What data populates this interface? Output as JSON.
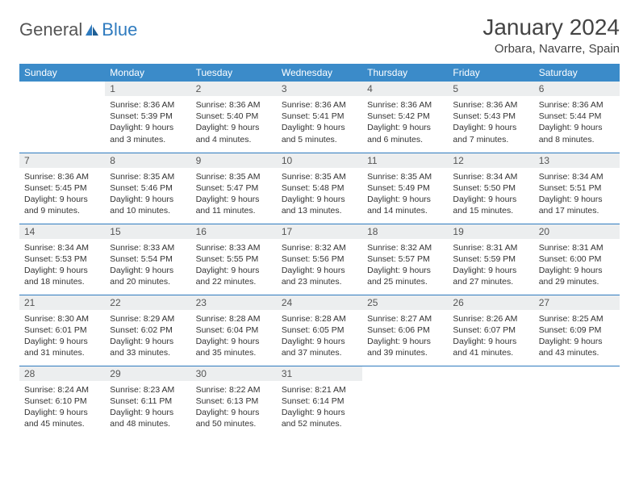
{
  "brand": {
    "general": "General",
    "blue": "Blue"
  },
  "title": "January 2024",
  "location": "Orbara, Navarre, Spain",
  "colors": {
    "header_bg": "#3b8bc9",
    "header_text": "#ffffff",
    "daynum_bg": "#eceeef",
    "week_border": "#2f7bbf",
    "brand_blue": "#2f7bbf"
  },
  "dow": [
    "Sunday",
    "Monday",
    "Tuesday",
    "Wednesday",
    "Thursday",
    "Friday",
    "Saturday"
  ],
  "weeks": [
    [
      {
        "n": "",
        "sr": "",
        "ss": "",
        "dl": ""
      },
      {
        "n": "1",
        "sr": "Sunrise: 8:36 AM",
        "ss": "Sunset: 5:39 PM",
        "dl": "Daylight: 9 hours and 3 minutes."
      },
      {
        "n": "2",
        "sr": "Sunrise: 8:36 AM",
        "ss": "Sunset: 5:40 PM",
        "dl": "Daylight: 9 hours and 4 minutes."
      },
      {
        "n": "3",
        "sr": "Sunrise: 8:36 AM",
        "ss": "Sunset: 5:41 PM",
        "dl": "Daylight: 9 hours and 5 minutes."
      },
      {
        "n": "4",
        "sr": "Sunrise: 8:36 AM",
        "ss": "Sunset: 5:42 PM",
        "dl": "Daylight: 9 hours and 6 minutes."
      },
      {
        "n": "5",
        "sr": "Sunrise: 8:36 AM",
        "ss": "Sunset: 5:43 PM",
        "dl": "Daylight: 9 hours and 7 minutes."
      },
      {
        "n": "6",
        "sr": "Sunrise: 8:36 AM",
        "ss": "Sunset: 5:44 PM",
        "dl": "Daylight: 9 hours and 8 minutes."
      }
    ],
    [
      {
        "n": "7",
        "sr": "Sunrise: 8:36 AM",
        "ss": "Sunset: 5:45 PM",
        "dl": "Daylight: 9 hours and 9 minutes."
      },
      {
        "n": "8",
        "sr": "Sunrise: 8:35 AM",
        "ss": "Sunset: 5:46 PM",
        "dl": "Daylight: 9 hours and 10 minutes."
      },
      {
        "n": "9",
        "sr": "Sunrise: 8:35 AM",
        "ss": "Sunset: 5:47 PM",
        "dl": "Daylight: 9 hours and 11 minutes."
      },
      {
        "n": "10",
        "sr": "Sunrise: 8:35 AM",
        "ss": "Sunset: 5:48 PM",
        "dl": "Daylight: 9 hours and 13 minutes."
      },
      {
        "n": "11",
        "sr": "Sunrise: 8:35 AM",
        "ss": "Sunset: 5:49 PM",
        "dl": "Daylight: 9 hours and 14 minutes."
      },
      {
        "n": "12",
        "sr": "Sunrise: 8:34 AM",
        "ss": "Sunset: 5:50 PM",
        "dl": "Daylight: 9 hours and 15 minutes."
      },
      {
        "n": "13",
        "sr": "Sunrise: 8:34 AM",
        "ss": "Sunset: 5:51 PM",
        "dl": "Daylight: 9 hours and 17 minutes."
      }
    ],
    [
      {
        "n": "14",
        "sr": "Sunrise: 8:34 AM",
        "ss": "Sunset: 5:53 PM",
        "dl": "Daylight: 9 hours and 18 minutes."
      },
      {
        "n": "15",
        "sr": "Sunrise: 8:33 AM",
        "ss": "Sunset: 5:54 PM",
        "dl": "Daylight: 9 hours and 20 minutes."
      },
      {
        "n": "16",
        "sr": "Sunrise: 8:33 AM",
        "ss": "Sunset: 5:55 PM",
        "dl": "Daylight: 9 hours and 22 minutes."
      },
      {
        "n": "17",
        "sr": "Sunrise: 8:32 AM",
        "ss": "Sunset: 5:56 PM",
        "dl": "Daylight: 9 hours and 23 minutes."
      },
      {
        "n": "18",
        "sr": "Sunrise: 8:32 AM",
        "ss": "Sunset: 5:57 PM",
        "dl": "Daylight: 9 hours and 25 minutes."
      },
      {
        "n": "19",
        "sr": "Sunrise: 8:31 AM",
        "ss": "Sunset: 5:59 PM",
        "dl": "Daylight: 9 hours and 27 minutes."
      },
      {
        "n": "20",
        "sr": "Sunrise: 8:31 AM",
        "ss": "Sunset: 6:00 PM",
        "dl": "Daylight: 9 hours and 29 minutes."
      }
    ],
    [
      {
        "n": "21",
        "sr": "Sunrise: 8:30 AM",
        "ss": "Sunset: 6:01 PM",
        "dl": "Daylight: 9 hours and 31 minutes."
      },
      {
        "n": "22",
        "sr": "Sunrise: 8:29 AM",
        "ss": "Sunset: 6:02 PM",
        "dl": "Daylight: 9 hours and 33 minutes."
      },
      {
        "n": "23",
        "sr": "Sunrise: 8:28 AM",
        "ss": "Sunset: 6:04 PM",
        "dl": "Daylight: 9 hours and 35 minutes."
      },
      {
        "n": "24",
        "sr": "Sunrise: 8:28 AM",
        "ss": "Sunset: 6:05 PM",
        "dl": "Daylight: 9 hours and 37 minutes."
      },
      {
        "n": "25",
        "sr": "Sunrise: 8:27 AM",
        "ss": "Sunset: 6:06 PM",
        "dl": "Daylight: 9 hours and 39 minutes."
      },
      {
        "n": "26",
        "sr": "Sunrise: 8:26 AM",
        "ss": "Sunset: 6:07 PM",
        "dl": "Daylight: 9 hours and 41 minutes."
      },
      {
        "n": "27",
        "sr": "Sunrise: 8:25 AM",
        "ss": "Sunset: 6:09 PM",
        "dl": "Daylight: 9 hours and 43 minutes."
      }
    ],
    [
      {
        "n": "28",
        "sr": "Sunrise: 8:24 AM",
        "ss": "Sunset: 6:10 PM",
        "dl": "Daylight: 9 hours and 45 minutes."
      },
      {
        "n": "29",
        "sr": "Sunrise: 8:23 AM",
        "ss": "Sunset: 6:11 PM",
        "dl": "Daylight: 9 hours and 48 minutes."
      },
      {
        "n": "30",
        "sr": "Sunrise: 8:22 AM",
        "ss": "Sunset: 6:13 PM",
        "dl": "Daylight: 9 hours and 50 minutes."
      },
      {
        "n": "31",
        "sr": "Sunrise: 8:21 AM",
        "ss": "Sunset: 6:14 PM",
        "dl": "Daylight: 9 hours and 52 minutes."
      },
      {
        "n": "",
        "sr": "",
        "ss": "",
        "dl": ""
      },
      {
        "n": "",
        "sr": "",
        "ss": "",
        "dl": ""
      },
      {
        "n": "",
        "sr": "",
        "ss": "",
        "dl": ""
      }
    ]
  ]
}
